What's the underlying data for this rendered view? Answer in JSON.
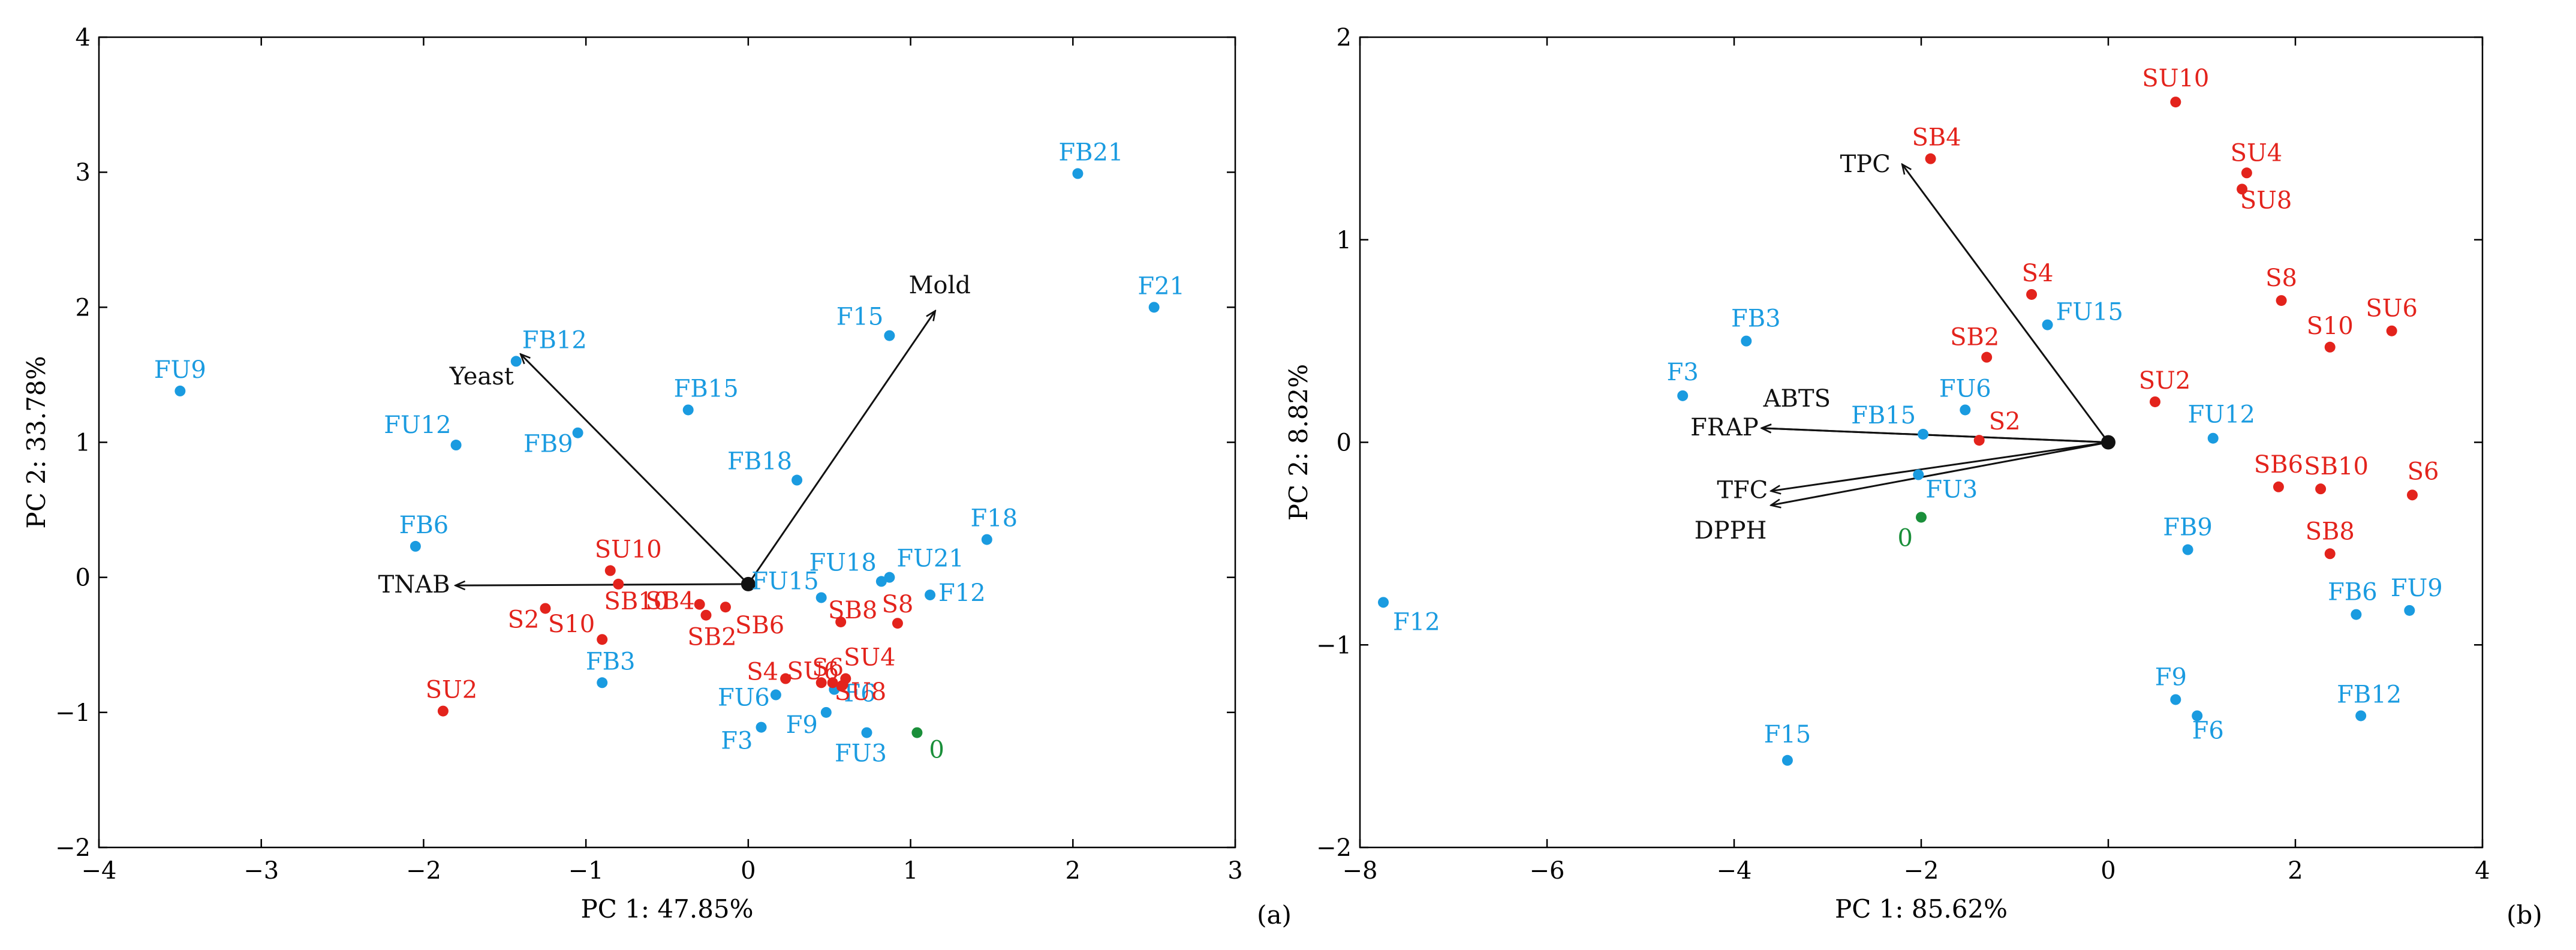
{
  "colors": {
    "blue": "#1a9be0",
    "red": "#e3231c",
    "green": "#1a8f3a",
    "arrow": "#111111"
  },
  "chart_data": [
    {
      "type": "scatter",
      "subtype": "biplot",
      "panel_label": "(a)",
      "xlabel": "PC 1: 47.85%",
      "ylabel": "PC 2: 33.78%",
      "xlim": [
        -4,
        3
      ],
      "ylim": [
        -2,
        4
      ],
      "xticks": [
        -4,
        -3,
        -2,
        -1,
        0,
        1,
        2,
        3
      ],
      "yticks": [
        -2,
        -1,
        0,
        1,
        2,
        3,
        4
      ],
      "xtick_labels": [
        "−4",
        "−3",
        "−2",
        "−1",
        "0",
        "1",
        "2",
        "3"
      ],
      "ytick_labels": [
        "−2",
        "−1",
        "0",
        "1",
        "2",
        "3",
        "4"
      ],
      "origin": [
        0,
        -0.05
      ],
      "loadings": [
        {
          "label": "Mold",
          "x": 1.15,
          "y": 1.97
        },
        {
          "label": "Yeast",
          "x": -1.4,
          "y": 1.65
        },
        {
          "label": "TNAB",
          "x": -1.8,
          "y": -0.06
        }
      ],
      "points": [
        {
          "label": "FU9",
          "x": -3.5,
          "y": 1.38,
          "group": "blue"
        },
        {
          "label": "FB12",
          "x": -1.43,
          "y": 1.6,
          "group": "blue"
        },
        {
          "label": "FU12",
          "x": -1.8,
          "y": 0.98,
          "group": "blue"
        },
        {
          "label": "FB9",
          "x": -1.05,
          "y": 1.07,
          "group": "blue"
        },
        {
          "label": "FB15",
          "x": -0.37,
          "y": 1.24,
          "group": "blue"
        },
        {
          "label": "FB6",
          "x": -2.05,
          "y": 0.23,
          "group": "blue"
        },
        {
          "label": "FB18",
          "x": 0.3,
          "y": 0.72,
          "group": "blue"
        },
        {
          "label": "F15",
          "x": 0.87,
          "y": 1.79,
          "group": "blue"
        },
        {
          "label": "FB21",
          "x": 2.03,
          "y": 2.99,
          "group": "blue"
        },
        {
          "label": "F21",
          "x": 2.5,
          "y": 2.0,
          "group": "blue"
        },
        {
          "label": "F18",
          "x": 1.47,
          "y": 0.28,
          "group": "blue"
        },
        {
          "label": "FU18",
          "x": 0.82,
          "y": -0.03,
          "group": "blue"
        },
        {
          "label": "FU21",
          "x": 0.87,
          "y": 0.0,
          "group": "blue"
        },
        {
          "label": "F12",
          "x": 1.12,
          "y": -0.13,
          "group": "blue"
        },
        {
          "label": "FU15",
          "x": 0.45,
          "y": -0.15,
          "group": "blue"
        },
        {
          "label": "FB3",
          "x": -0.9,
          "y": -0.78,
          "group": "blue"
        },
        {
          "label": "FU6",
          "x": 0.17,
          "y": -0.87,
          "group": "blue"
        },
        {
          "label": "F6",
          "x": 0.53,
          "y": -0.83,
          "group": "blue"
        },
        {
          "label": "F3",
          "x": 0.08,
          "y": -1.11,
          "group": "blue"
        },
        {
          "label": "F9",
          "x": 0.48,
          "y": -1.0,
          "group": "blue"
        },
        {
          "label": "FU3",
          "x": 0.73,
          "y": -1.15,
          "group": "blue"
        },
        {
          "label": "SU10",
          "x": -0.85,
          "y": 0.05,
          "group": "red"
        },
        {
          "label": "SB10",
          "x": -0.8,
          "y": -0.05,
          "group": "red"
        },
        {
          "label": "SB4",
          "x": -0.3,
          "y": -0.2,
          "group": "red"
        },
        {
          "label": "SB6",
          "x": -0.14,
          "y": -0.22,
          "group": "red"
        },
        {
          "label": "SB2",
          "x": -0.26,
          "y": -0.28,
          "group": "red"
        },
        {
          "label": "S2",
          "x": -1.25,
          "y": -0.23,
          "group": "red"
        },
        {
          "label": "S10",
          "x": -0.9,
          "y": -0.46,
          "group": "red"
        },
        {
          "label": "SU2",
          "x": -1.88,
          "y": -0.99,
          "group": "red"
        },
        {
          "label": "SB8",
          "x": 0.57,
          "y": -0.33,
          "group": "red"
        },
        {
          "label": "S8",
          "x": 0.92,
          "y": -0.34,
          "group": "red"
        },
        {
          "label": "S4",
          "x": 0.23,
          "y": -0.75,
          "group": "red"
        },
        {
          "label": "SU6",
          "x": 0.45,
          "y": -0.78,
          "group": "red"
        },
        {
          "label": "S6",
          "x": 0.52,
          "y": -0.78,
          "group": "red"
        },
        {
          "label": "SU4",
          "x": 0.6,
          "y": -0.75,
          "group": "red"
        },
        {
          "label": "SU8",
          "x": 0.58,
          "y": -0.8,
          "group": "red"
        },
        {
          "label": "0",
          "x": 1.04,
          "y": -1.15,
          "group": "green"
        }
      ]
    },
    {
      "type": "scatter",
      "subtype": "biplot",
      "panel_label": "(b)",
      "xlabel": "PC 1: 85.62%",
      "ylabel": "PC 2: 8.82%",
      "xlim": [
        -8,
        4
      ],
      "ylim": [
        -2,
        2
      ],
      "xticks": [
        -8,
        -6,
        -4,
        -2,
        0,
        2,
        4
      ],
      "yticks": [
        -2,
        -1,
        0,
        1,
        2
      ],
      "xtick_labels": [
        "−8",
        "−6",
        "−4",
        "−2",
        "0",
        "2",
        "4"
      ],
      "ytick_labels": [
        "−2",
        "−1",
        "0",
        "1",
        "2"
      ],
      "origin": [
        0,
        0
      ],
      "loadings": [
        {
          "label": "TPC",
          "x": -2.2,
          "y": 1.37
        },
        {
          "label": "ABTS",
          "x": -3.7,
          "y": 0.07
        },
        {
          "label": "FRAP",
          "x": -3.7,
          "y": 0.07
        },
        {
          "label": "TFC",
          "x": -3.6,
          "y": -0.24
        },
        {
          "label": "DPPH",
          "x": -3.6,
          "y": -0.31
        }
      ],
      "points": [
        {
          "label": "F12",
          "x": -7.75,
          "y": -0.79,
          "group": "blue"
        },
        {
          "label": "F3",
          "x": -4.55,
          "y": 0.23,
          "group": "blue"
        },
        {
          "label": "FB3",
          "x": -3.87,
          "y": 0.5,
          "group": "blue"
        },
        {
          "label": "FB15",
          "x": -1.98,
          "y": 0.04,
          "group": "blue"
        },
        {
          "label": "FU6",
          "x": -1.53,
          "y": 0.16,
          "group": "blue"
        },
        {
          "label": "FU3",
          "x": -2.03,
          "y": -0.16,
          "group": "blue"
        },
        {
          "label": "FU15",
          "x": -0.65,
          "y": 0.58,
          "group": "blue"
        },
        {
          "label": "F15",
          "x": -3.43,
          "y": -1.57,
          "group": "blue"
        },
        {
          "label": "FU12",
          "x": 1.12,
          "y": 0.02,
          "group": "blue"
        },
        {
          "label": "FB9",
          "x": 0.85,
          "y": -0.53,
          "group": "blue"
        },
        {
          "label": "FB6",
          "x": 2.65,
          "y": -0.85,
          "group": "blue"
        },
        {
          "label": "FU9",
          "x": 3.22,
          "y": -0.83,
          "group": "blue"
        },
        {
          "label": "F9",
          "x": 0.72,
          "y": -1.27,
          "group": "blue"
        },
        {
          "label": "F6",
          "x": 0.95,
          "y": -1.35,
          "group": "blue"
        },
        {
          "label": "FB12",
          "x": 2.7,
          "y": -1.35,
          "group": "blue"
        },
        {
          "label": "SB4",
          "x": -1.9,
          "y": 1.4,
          "group": "red"
        },
        {
          "label": "SB2",
          "x": -1.3,
          "y": 0.42,
          "group": "red"
        },
        {
          "label": "S4",
          "x": -0.82,
          "y": 0.73,
          "group": "red"
        },
        {
          "label": "S2",
          "x": -1.38,
          "y": 0.01,
          "group": "red"
        },
        {
          "label": "SU10",
          "x": 0.72,
          "y": 1.68,
          "group": "red"
        },
        {
          "label": "SU4",
          "x": 1.48,
          "y": 1.33,
          "group": "red"
        },
        {
          "label": "SU8",
          "x": 1.43,
          "y": 1.25,
          "group": "red"
        },
        {
          "label": "S8",
          "x": 1.85,
          "y": 0.7,
          "group": "red"
        },
        {
          "label": "S10",
          "x": 2.37,
          "y": 0.47,
          "group": "red"
        },
        {
          "label": "SU6",
          "x": 3.03,
          "y": 0.55,
          "group": "red"
        },
        {
          "label": "SU2",
          "x": 0.5,
          "y": 0.2,
          "group": "red"
        },
        {
          "label": "SB6",
          "x": 1.82,
          "y": -0.22,
          "group": "red"
        },
        {
          "label": "SB10",
          "x": 2.27,
          "y": -0.23,
          "group": "red"
        },
        {
          "label": "S6",
          "x": 3.25,
          "y": -0.26,
          "group": "red"
        },
        {
          "label": "SB8",
          "x": 2.37,
          "y": -0.55,
          "group": "red"
        },
        {
          "label": "0",
          "x": -2.0,
          "y": -0.37,
          "group": "green"
        }
      ]
    }
  ]
}
